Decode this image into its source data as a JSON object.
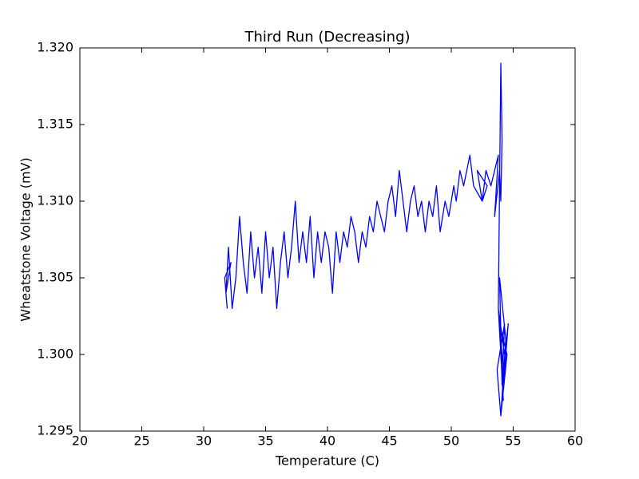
{
  "chart_data": {
    "type": "line",
    "title": "Third Run (Decreasing)",
    "xlabel": "Temperature (C)",
    "ylabel": "Wheatstone Voltage (mV)",
    "color": "#0000ff",
    "grid": false,
    "xlim": [
      20,
      60
    ],
    "xticks": [
      20,
      25,
      30,
      35,
      40,
      45,
      50,
      55,
      60
    ],
    "ylim": [
      1.295,
      1.32
    ],
    "yticks": [
      1.295,
      {
        "value": 1.3,
        "label": "1.300"
      },
      1.305,
      {
        "value": 1.31,
        "label": "1.310"
      },
      1.315,
      {
        "value": 1.32,
        "label": "1.320"
      }
    ],
    "x": [
      54.3,
      53.8,
      54.2,
      53.9,
      54.5,
      54.0,
      53.7,
      54.3,
      54.1,
      53.9,
      54.4,
      54.0,
      54.6,
      54.2,
      53.8,
      54.0,
      54.1,
      54.0,
      53.9,
      53.5,
      53.8,
      53.2,
      52.8,
      52.5,
      52.9,
      52.1,
      52.5,
      51.8,
      51.5,
      51.0,
      50.7,
      50.4,
      50.2,
      49.8,
      49.5,
      49.1,
      48.8,
      48.5,
      48.2,
      47.9,
      47.6,
      47.3,
      47.0,
      46.7,
      46.4,
      46.1,
      45.8,
      45.5,
      45.2,
      44.9,
      44.6,
      44.3,
      44.0,
      43.7,
      43.4,
      43.1,
      42.8,
      42.5,
      42.2,
      41.9,
      41.6,
      41.3,
      41.0,
      40.7,
      40.4,
      40.1,
      39.8,
      39.5,
      39.2,
      38.9,
      38.6,
      38.3,
      38.0,
      37.7,
      37.4,
      37.1,
      36.8,
      36.5,
      36.2,
      35.9,
      35.6,
      35.3,
      35.0,
      34.7,
      34.4,
      34.1,
      33.8,
      33.5,
      33.2,
      32.9,
      32.6,
      32.3,
      32.0,
      31.8,
      32.2,
      31.7,
      31.9
    ],
    "values": [
      1.3,
      1.303,
      1.297,
      1.302,
      1.3,
      1.296,
      1.299,
      1.302,
      1.298,
      1.305,
      1.301,
      1.296,
      1.302,
      1.299,
      1.303,
      1.319,
      1.314,
      1.31,
      1.312,
      1.309,
      1.313,
      1.311,
      1.312,
      1.31,
      1.311,
      1.312,
      1.31,
      1.311,
      1.313,
      1.311,
      1.312,
      1.31,
      1.311,
      1.309,
      1.31,
      1.308,
      1.311,
      1.309,
      1.31,
      1.308,
      1.31,
      1.309,
      1.311,
      1.31,
      1.308,
      1.31,
      1.312,
      1.309,
      1.311,
      1.31,
      1.308,
      1.309,
      1.31,
      1.308,
      1.309,
      1.307,
      1.308,
      1.306,
      1.308,
      1.309,
      1.307,
      1.308,
      1.306,
      1.308,
      1.304,
      1.307,
      1.308,
      1.306,
      1.308,
      1.305,
      1.309,
      1.306,
      1.308,
      1.306,
      1.31,
      1.307,
      1.305,
      1.308,
      1.306,
      1.303,
      1.307,
      1.305,
      1.308,
      1.304,
      1.307,
      1.305,
      1.308,
      1.304,
      1.306,
      1.309,
      1.305,
      1.303,
      1.307,
      1.304,
      1.306,
      1.305,
      1.303
    ]
  }
}
